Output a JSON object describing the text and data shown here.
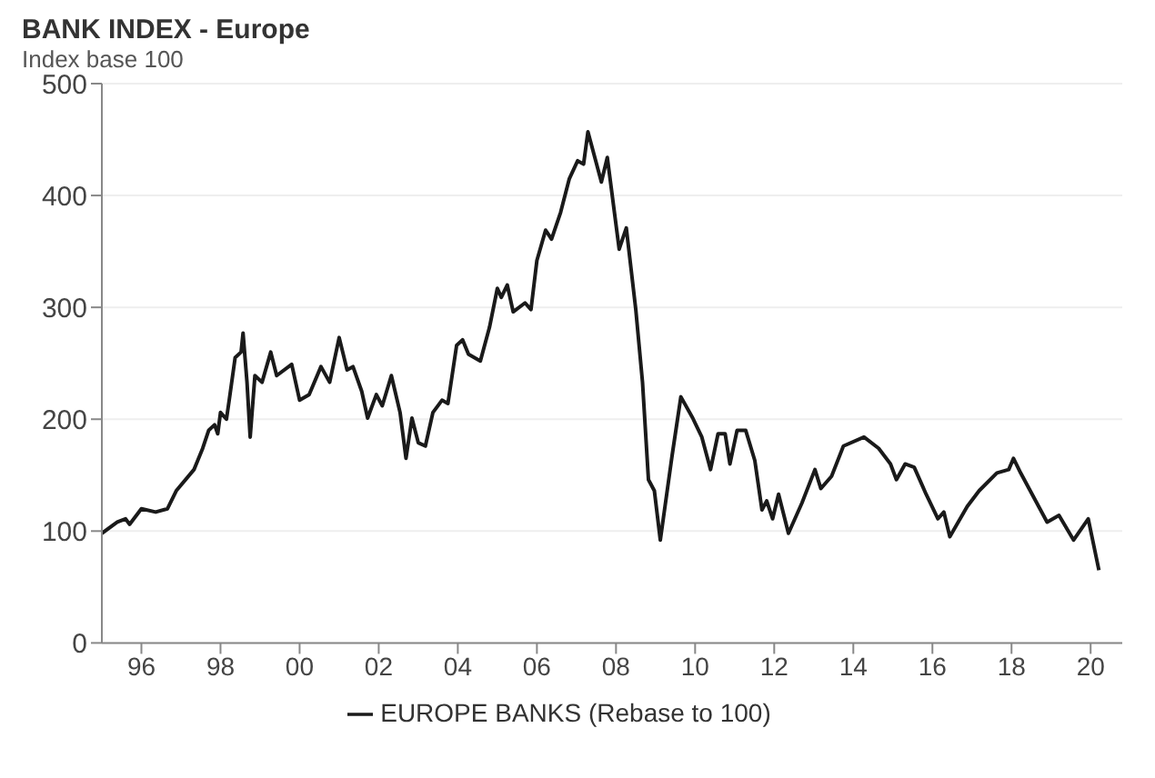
{
  "chart_data": {
    "type": "line",
    "title": "BANK INDEX - Europe",
    "subtitle": "Index base 100",
    "x": [
      1995.0,
      1995.39,
      1995.6,
      1995.7,
      1996.0,
      1996.36,
      1996.66,
      1996.88,
      1997.33,
      1997.55,
      1997.7,
      1997.85,
      1997.93,
      1998.0,
      1998.15,
      1998.22,
      1998.37,
      1998.52,
      1998.57,
      1998.67,
      1998.75,
      1998.87,
      1999.05,
      1999.27,
      1999.42,
      1999.8,
      2000.0,
      2000.24,
      2000.54,
      2000.76,
      2001.0,
      2001.2,
      2001.35,
      2001.57,
      2001.72,
      2001.94,
      2002.09,
      2002.32,
      2002.54,
      2002.69,
      2002.84,
      2003.0,
      2003.18,
      2003.37,
      2003.6,
      2003.75,
      2003.97,
      2004.12,
      2004.27,
      2004.57,
      2004.8,
      2005.0,
      2005.1,
      2005.25,
      2005.4,
      2005.7,
      2005.85,
      2006.0,
      2006.22,
      2006.37,
      2006.6,
      2006.82,
      2007.03,
      2007.18,
      2007.29,
      2007.63,
      2007.78,
      2008.08,
      2008.26,
      2008.5,
      2008.67,
      2008.82,
      2008.97,
      2009.12,
      2009.42,
      2009.64,
      2009.94,
      2010.17,
      2010.39,
      2010.58,
      2010.76,
      2010.88,
      2011.06,
      2011.28,
      2011.51,
      2011.69,
      2011.81,
      2011.96,
      2012.11,
      2012.36,
      2012.7,
      2013.03,
      2013.18,
      2013.45,
      2013.75,
      2014.27,
      2014.64,
      2014.94,
      2015.09,
      2015.31,
      2015.54,
      2015.84,
      2016.14,
      2016.29,
      2016.44,
      2016.88,
      2017.18,
      2017.63,
      2017.93,
      2018.05,
      2018.23,
      2018.52,
      2018.9,
      2019.2,
      2019.57,
      2019.94,
      2020.21
    ],
    "series": [
      {
        "name": "EUROPE BANKS (Rebase to 100)",
        "color": "#1a1a1a",
        "values": [
          98,
          108,
          111,
          106,
          120,
          117,
          120,
          136,
          155,
          174,
          190,
          195,
          187,
          206,
          200,
          217,
          255,
          260,
          277,
          233,
          184,
          239,
          233,
          260,
          239,
          249,
          217,
          222,
          247,
          233,
          273,
          244,
          247,
          225,
          201,
          222,
          212,
          239,
          206,
          165,
          201,
          179,
          176,
          206,
          217,
          214,
          266,
          271,
          258,
          252,
          282,
          317,
          309,
          320,
          296,
          304,
          298,
          342,
          369,
          361,
          385,
          415,
          431,
          428,
          457,
          412,
          434,
          352,
          371,
          298,
          233,
          146,
          136,
          92,
          168,
          220,
          201,
          184,
          155,
          187,
          187,
          160,
          190,
          190,
          163,
          119,
          127,
          111,
          133,
          98,
          125,
          155,
          138,
          149,
          176,
          184,
          174,
          160,
          146,
          160,
          157,
          133,
          111,
          117,
          95,
          122,
          136,
          152,
          155,
          165,
          152,
          133,
          108,
          114,
          92,
          111,
          65
        ]
      }
    ],
    "xlim": [
      1995,
      2020.8
    ],
    "xticks": [
      {
        "value": 1996,
        "label": "96"
      },
      {
        "value": 1998,
        "label": "98"
      },
      {
        "value": 2000,
        "label": "00"
      },
      {
        "value": 2002,
        "label": "02"
      },
      {
        "value": 2004,
        "label": "04"
      },
      {
        "value": 2006,
        "label": "06"
      },
      {
        "value": 2008,
        "label": "08"
      },
      {
        "value": 2010,
        "label": "10"
      },
      {
        "value": 2012,
        "label": "12"
      },
      {
        "value": 2014,
        "label": "14"
      },
      {
        "value": 2016,
        "label": "16"
      },
      {
        "value": 2018,
        "label": "18"
      },
      {
        "value": 2020,
        "label": "20"
      }
    ],
    "ylim": [
      0,
      500
    ],
    "yticks": [
      0,
      100,
      200,
      300,
      400,
      500
    ],
    "grid": "y",
    "legend": "bottom",
    "marker": "none",
    "line_style": "solid"
  }
}
